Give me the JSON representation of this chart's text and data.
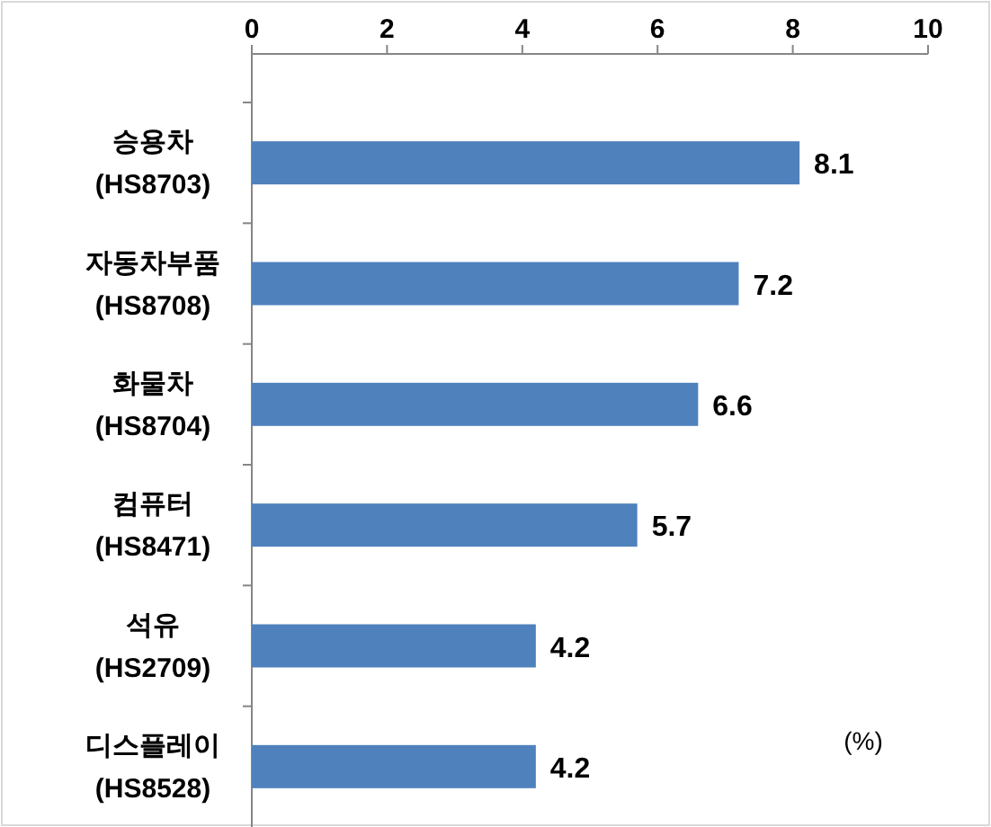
{
  "chart_data": {
    "type": "bar",
    "orientation": "horizontal",
    "categories": [
      "승용차\n(HS8703)",
      "자동차부품\n(HS8708)",
      "화물차\n(HS8704)",
      "컴퓨터\n(HS8471)",
      "석유\n(HS2709)",
      "디스플레이\n(HS8528)"
    ],
    "values": [
      8.1,
      7.2,
      6.6,
      5.7,
      4.2,
      4.2
    ],
    "color": "#4f81bd",
    "xlim": [
      0,
      10
    ],
    "xticks": [
      0,
      2,
      4,
      6,
      8,
      10
    ],
    "data_labels": true,
    "annotations": [
      "(%)"
    ]
  }
}
